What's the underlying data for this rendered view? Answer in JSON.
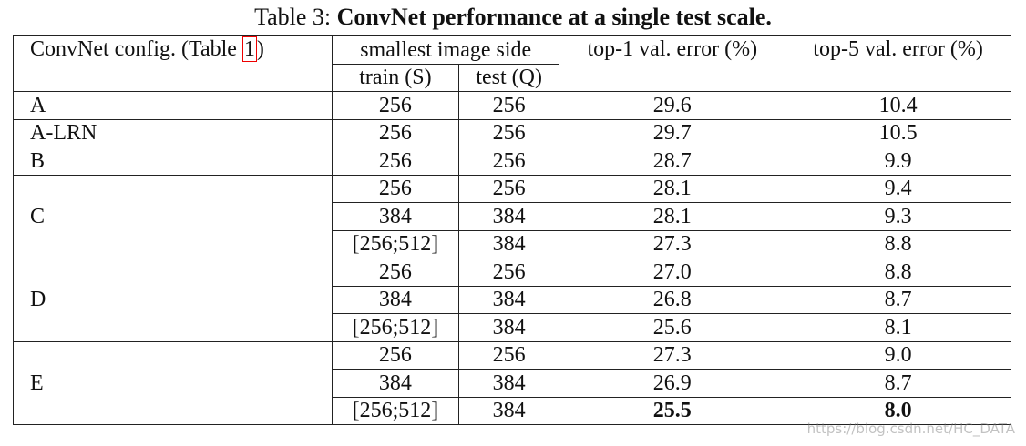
{
  "caption": {
    "label": "Table 3:",
    "text": "ConvNet performance at a single test scale."
  },
  "header": {
    "config": "ConvNet config. (Table",
    "config_ref": "1",
    "config_close": ")",
    "image_side": "smallest image side",
    "train": "train (S)",
    "test": "test (Q)",
    "top1": "top-1 val. error (%)",
    "top5": "top-5 val. error (%)"
  },
  "groups": [
    {
      "config": "A",
      "rows": [
        [
          "256",
          "256",
          "29.6",
          "10.4"
        ]
      ]
    },
    {
      "config": "A-LRN",
      "rows": [
        [
          "256",
          "256",
          "29.7",
          "10.5"
        ]
      ]
    },
    {
      "config": "B",
      "rows": [
        [
          "256",
          "256",
          "28.7",
          "9.9"
        ]
      ]
    },
    {
      "config": "C",
      "rows": [
        [
          "256",
          "256",
          "28.1",
          "9.4"
        ],
        [
          "384",
          "384",
          "28.1",
          "9.3"
        ],
        [
          "[256;512]",
          "384",
          "27.3",
          "8.8"
        ]
      ]
    },
    {
      "config": "D",
      "rows": [
        [
          "256",
          "256",
          "27.0",
          "8.8"
        ],
        [
          "384",
          "384",
          "26.8",
          "8.7"
        ],
        [
          "[256;512]",
          "384",
          "25.6",
          "8.1"
        ]
      ]
    },
    {
      "config": "E",
      "rows": [
        [
          "256",
          "256",
          "27.3",
          "9.0"
        ],
        [
          "384",
          "384",
          "26.9",
          "8.7"
        ],
        [
          "[256;512]",
          "384",
          "25.5",
          "8.0"
        ]
      ],
      "bold_row": 2
    }
  ],
  "watermark": "https://blog.csdn.net/HC_DATA"
}
